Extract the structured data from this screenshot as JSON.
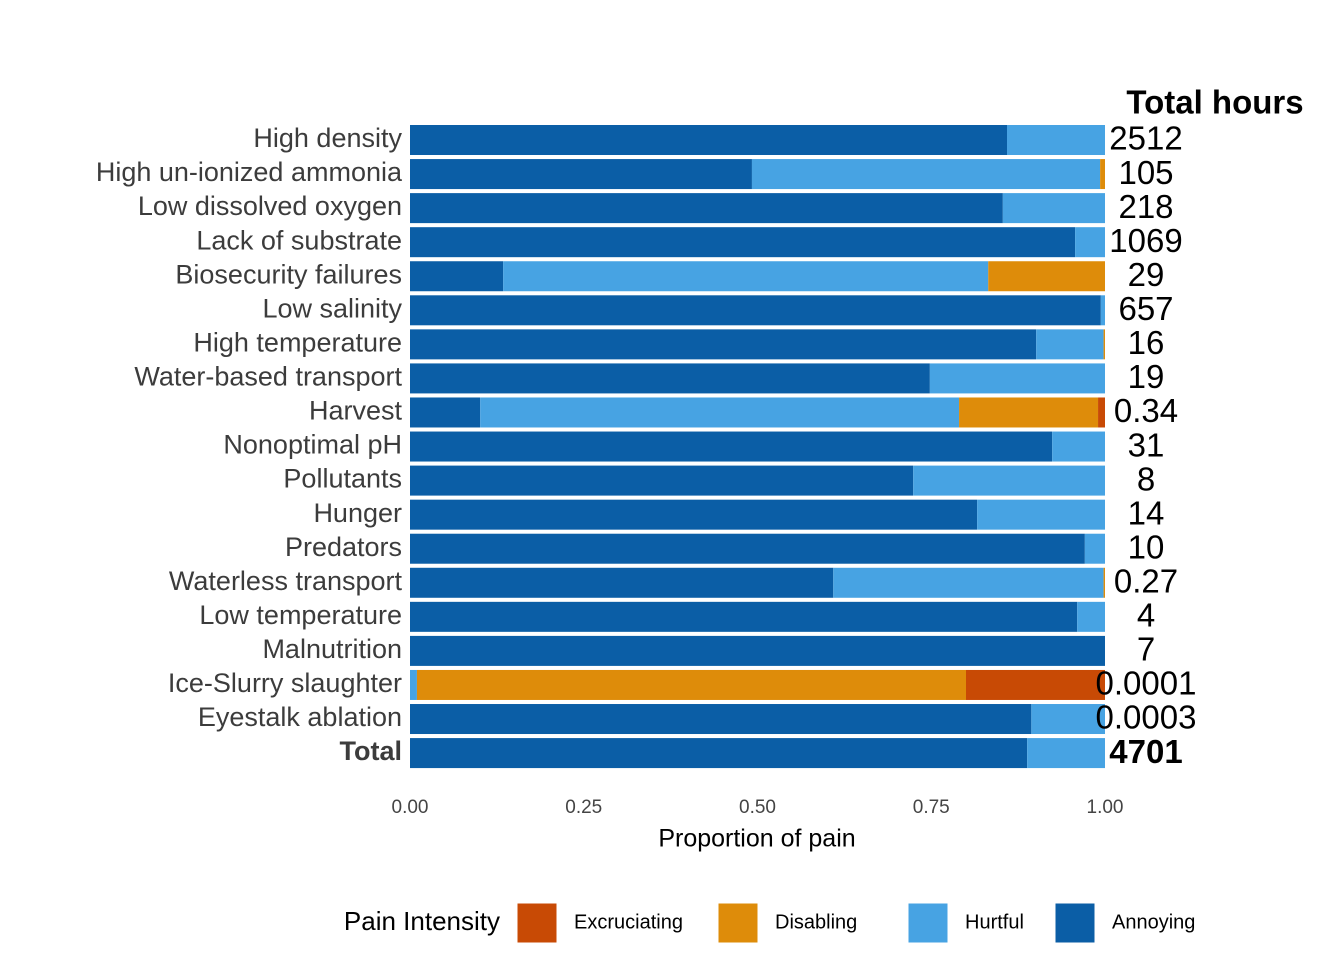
{
  "chart_data": {
    "type": "stacked-bar-horizontal",
    "xlabel": "Proportion of pain",
    "right_header": "Total hours",
    "legend_title": "Pain Intensity",
    "legend_position": "bottom",
    "categories": [
      "High density",
      "High un-ionized ammonia",
      "Low dissolved oxygen",
      "Lack of substrate",
      "Biosecurity failures",
      "Low salinity",
      "High temperature",
      "Water-based transport",
      "Harvest",
      "Nonoptimal pH",
      "Pollutants",
      "Hunger",
      "Predators",
      "Waterless transport",
      "Low temperature",
      "Malnutrition",
      "Ice-Slurry slaughter",
      "Eyestalk ablation",
      "Total"
    ],
    "total_hours": [
      2512,
      105,
      218,
      1069,
      29,
      657,
      16,
      19,
      0.34,
      31,
      8,
      14,
      10,
      0.27,
      4,
      7,
      0.0001,
      0.0003,
      4701
    ],
    "series": [
      {
        "name": "Excruciating",
        "color": "#c84a05",
        "values": [
          0,
          0,
          0,
          0,
          0,
          0,
          0,
          0,
          0.01,
          0,
          0,
          0,
          0,
          0,
          0,
          0,
          0.2,
          0,
          0
        ]
      },
      {
        "name": "Disabling",
        "color": "#de8c0a",
        "values": [
          0,
          0.007,
          0,
          0,
          0.168,
          0,
          0.002,
          0,
          0.2,
          0,
          0,
          0,
          0,
          0.002,
          0,
          0,
          0.79,
          0,
          0
        ]
      },
      {
        "name": "Hurtful",
        "color": "#47a3e3",
        "values": [
          0.141,
          0.501,
          0.147,
          0.043,
          0.698,
          0.006,
          0.097,
          0.252,
          0.689,
          0.076,
          0.276,
          0.184,
          0.029,
          0.389,
          0.04,
          0,
          0.01,
          0.106,
          0.112
        ]
      },
      {
        "name": "Annoying",
        "color": "#0b5ea6",
        "values": [
          0.859,
          0.492,
          0.853,
          0.957,
          0.134,
          0.994,
          0.901,
          0.748,
          0.101,
          0.924,
          0.724,
          0.816,
          0.971,
          0.609,
          0.96,
          1.0,
          0,
          0.894,
          0.888
        ]
      }
    ],
    "xlim": [
      0,
      1
    ],
    "xticks": [
      {
        "value": 0,
        "label": "0.00"
      },
      {
        "value": 0.25,
        "label": "0.25"
      },
      {
        "value": 0.5,
        "label": "0.50"
      },
      {
        "value": 0.75,
        "label": "0.75"
      },
      {
        "value": 1,
        "label": "1.00"
      }
    ]
  }
}
